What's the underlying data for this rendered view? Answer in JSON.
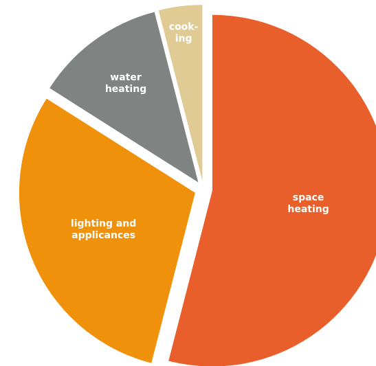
{
  "chart_data": {
    "type": "pie",
    "title": "",
    "slices": [
      {
        "label_lines": [
          "space",
          "heating"
        ],
        "value": 54,
        "color": "#E85F2B"
      },
      {
        "label_lines": [
          "lighting and",
          "applicances"
        ],
        "value": 30,
        "color": "#F0910C"
      },
      {
        "label_lines": [
          "water",
          "heating"
        ],
        "value": 12,
        "color": "#7F8382"
      },
      {
        "label_lines": [
          "cook-",
          "ing"
        ],
        "value": 4,
        "color": "#E1CB94"
      }
    ],
    "start_angle_deg": 0,
    "direction": "clockwise",
    "exploded": true,
    "legend": "none",
    "data_labels": "inside"
  }
}
